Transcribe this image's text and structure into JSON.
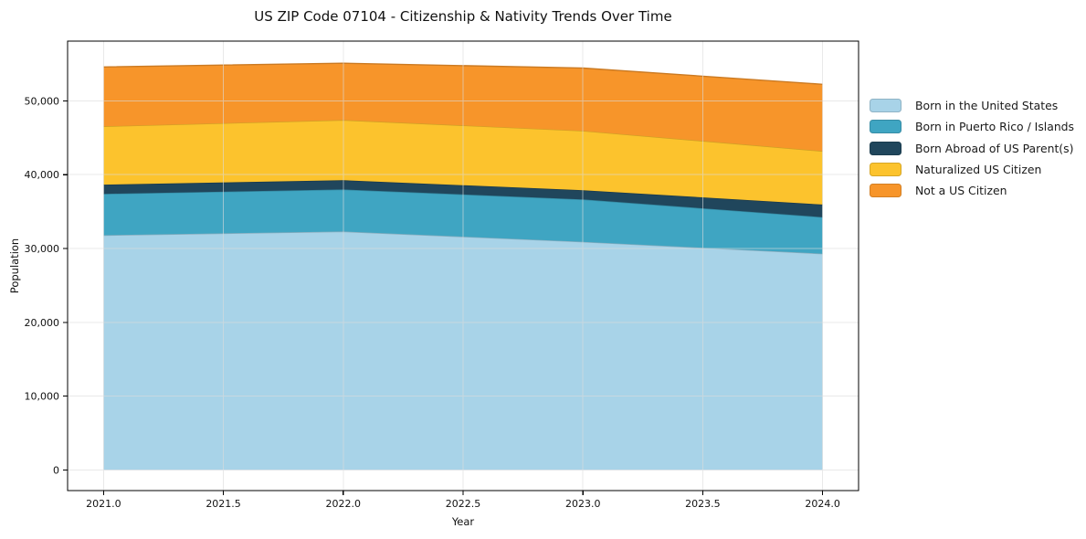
{
  "figure": {
    "title": "US ZIP Code 07104 - Citizenship & Nativity Trends Over Time",
    "xlabel": "Year",
    "ylabel": "Population"
  },
  "chart_data": {
    "type": "area",
    "stacked": true,
    "title": "US ZIP Code 07104 - Citizenship & Nativity Trends Over Time",
    "xlabel": "Year",
    "ylabel": "Population",
    "x": [
      2021,
      2022,
      2023,
      2024
    ],
    "series": [
      {
        "name": "Born in the United States",
        "color": "#a8d3e8",
        "values": [
          31800,
          32300,
          30900,
          29300
        ]
      },
      {
        "name": "Born in Puerto Rico / Islands",
        "color": "#3fa5c2",
        "values": [
          5600,
          5700,
          5750,
          4950
        ]
      },
      {
        "name": "Born Abroad of US Parent(s)",
        "color": "#20465c",
        "values": [
          1250,
          1250,
          1250,
          1700
        ]
      },
      {
        "name": "Naturalized US Citizen",
        "color": "#fcc32d",
        "values": [
          7900,
          8150,
          8050,
          7250
        ]
      },
      {
        "name": "Not a US Citizen",
        "color": "#f7952a",
        "values": [
          8050,
          7700,
          8500,
          9050
        ]
      }
    ],
    "totals": [
      54600,
      55100,
      54450,
      52250
    ],
    "xlim": [
      2020.85,
      2024.15
    ],
    "ylim": [
      -2800,
      58100
    ],
    "xticks": [
      {
        "v": 2021.0,
        "label": "2021.0"
      },
      {
        "v": 2021.5,
        "label": "2021.5"
      },
      {
        "v": 2022.0,
        "label": "2022.0"
      },
      {
        "v": 2022.5,
        "label": "2022.5"
      },
      {
        "v": 2023.0,
        "label": "2023.0"
      },
      {
        "v": 2023.5,
        "label": "2023.5"
      },
      {
        "v": 2024.0,
        "label": "2024.0"
      }
    ],
    "yticks": [
      {
        "v": 0,
        "label": "0"
      },
      {
        "v": 10000,
        "label": "10,000"
      },
      {
        "v": 20000,
        "label": "20,000"
      },
      {
        "v": 30000,
        "label": "30,000"
      },
      {
        "v": 40000,
        "label": "40,000"
      },
      {
        "v": 50000,
        "label": "50,000"
      }
    ],
    "grid": true,
    "legend_position": "right-outside"
  },
  "colors": {
    "background": "#ffffff",
    "grid": "#dcdcdc",
    "spine": "#000000",
    "tick_text": "#111111"
  }
}
